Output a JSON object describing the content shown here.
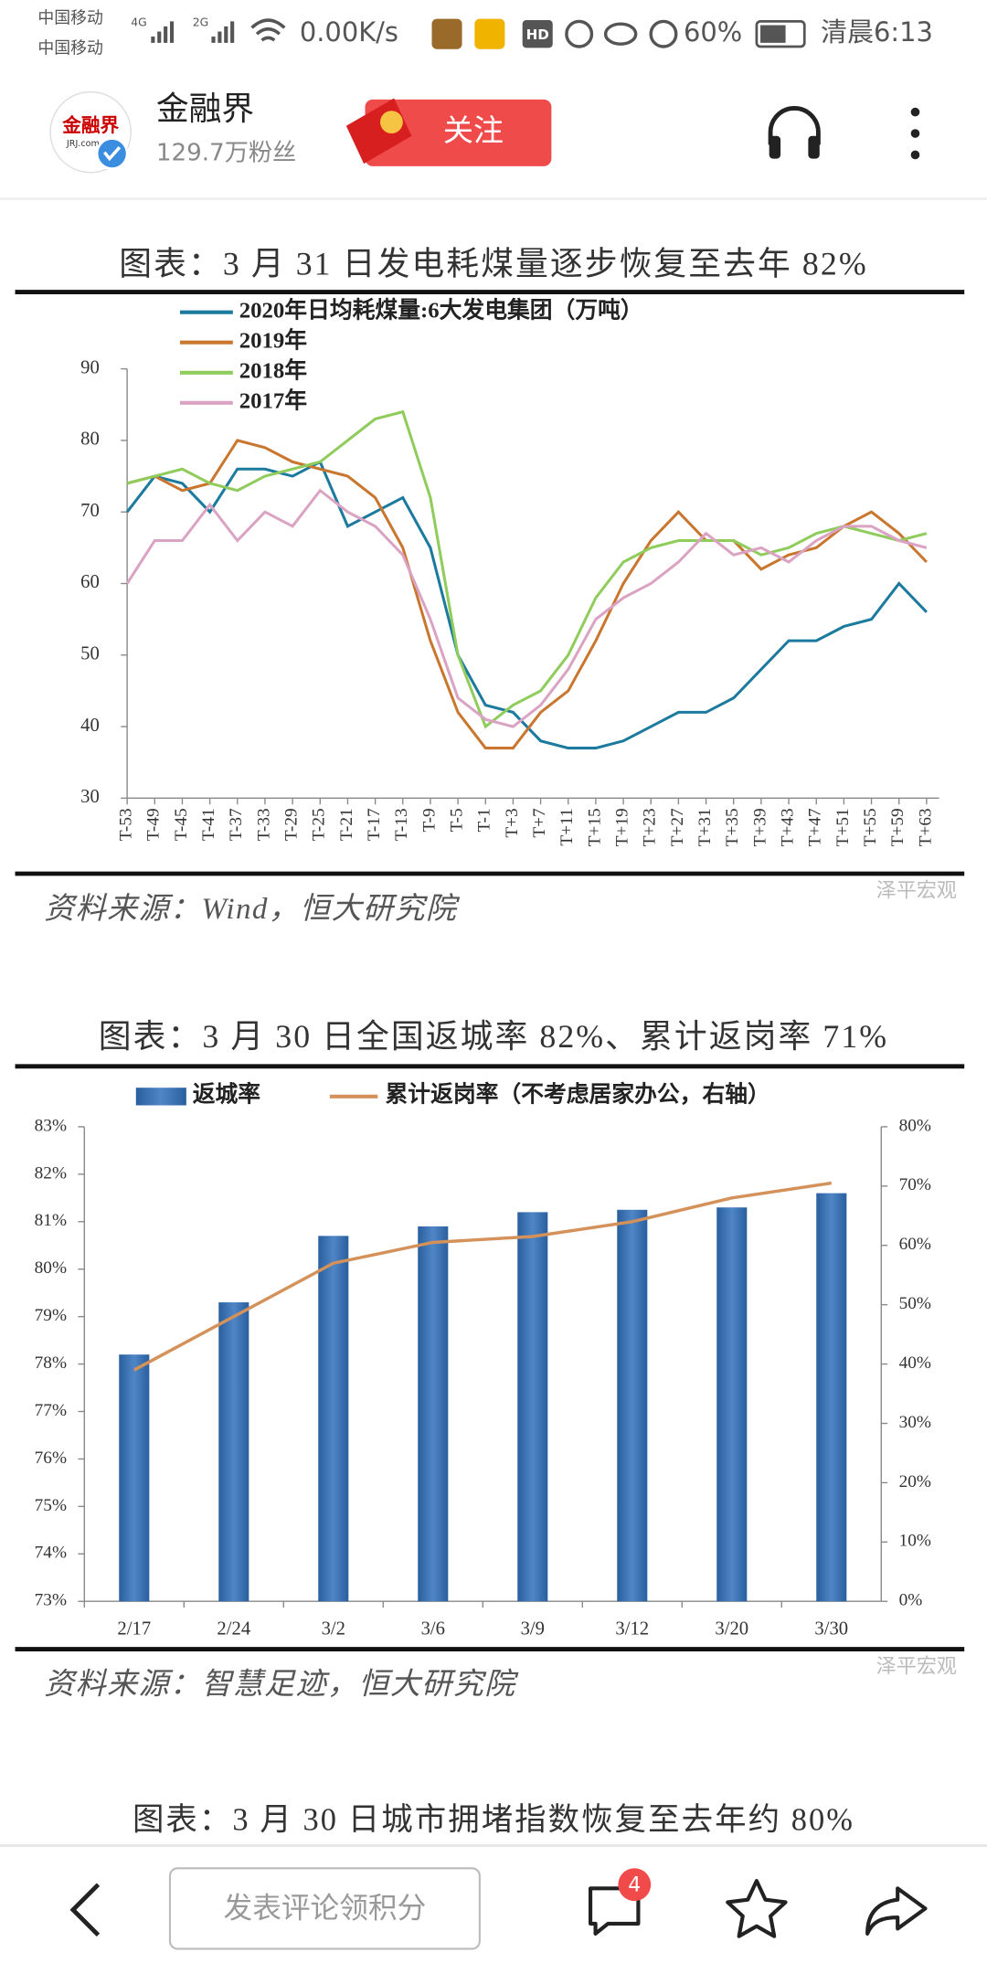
{
  "status_bar": {
    "carrier_1": "中国移动",
    "carrier_2": "中国移动",
    "net_1": "4G",
    "net_2": "2G",
    "speed": "0.00K/s",
    "hd": "HD",
    "battery": "60%",
    "time": "清晨6:13"
  },
  "header": {
    "logo": "金融界",
    "logo_sub": "JRJ.com",
    "name": "金融界",
    "followers": "129.7万粉丝",
    "follow_button": "关注"
  },
  "chart_data": [
    {
      "type": "line",
      "title": "图表：3 月 31 日发电耗煤量逐步恢复至去年 82%",
      "categories": [
        "T-53",
        "T-49",
        "T-45",
        "T-41",
        "T-37",
        "T-33",
        "T-29",
        "T-25",
        "T-21",
        "T-17",
        "T-13",
        "T-9",
        "T-5",
        "T-1",
        "T+3",
        "T+7",
        "T+11",
        "T+15",
        "T+19",
        "T+23",
        "T+27",
        "T+31",
        "T+35",
        "T+39",
        "T+43",
        "T+47",
        "T+51",
        "T+55",
        "T+59",
        "T+63"
      ],
      "series": [
        {
          "name": "2020年日均耗煤量:6大发电集团（万吨）",
          "color": "#1b7a9e",
          "values": [
            70,
            75,
            74,
            70,
            76,
            76,
            75,
            77,
            68,
            70,
            72,
            65,
            50,
            43,
            42,
            38,
            37,
            37,
            38,
            40,
            42,
            42,
            44,
            48,
            52,
            52,
            54,
            55,
            60,
            56
          ]
        },
        {
          "name": "2019年",
          "color": "#c9762f",
          "values": [
            74,
            75,
            73,
            74,
            80,
            79,
            77,
            76,
            75,
            72,
            65,
            52,
            42,
            37,
            37,
            42,
            45,
            52,
            60,
            66,
            70,
            66,
            66,
            62,
            64,
            65,
            68,
            70,
            67,
            63
          ]
        },
        {
          "name": "2018年",
          "color": "#8fcc5c",
          "values": [
            74,
            75,
            76,
            74,
            73,
            75,
            76,
            77,
            80,
            83,
            84,
            72,
            50,
            40,
            43,
            45,
            50,
            58,
            63,
            65,
            66,
            66,
            66,
            64,
            65,
            67,
            68,
            67,
            66,
            67
          ]
        },
        {
          "name": "2017年",
          "color": "#dba3c3",
          "values": [
            60,
            66,
            66,
            71,
            66,
            70,
            68,
            73,
            70,
            68,
            64,
            55,
            44,
            41,
            40,
            43,
            48,
            55,
            58,
            60,
            63,
            67,
            64,
            65,
            63,
            66,
            68,
            68,
            66,
            65
          ]
        }
      ],
      "ylim": [
        30,
        90
      ],
      "yticks": [
        30,
        40,
        50,
        60,
        70,
        80,
        90
      ],
      "legend": "top-left",
      "source": "资料来源：Wind，恒大研究院",
      "watermark": "泽平宏观"
    },
    {
      "type": "bar",
      "title": "图表：3 月 30 日全国返城率 82%、累计返岗率 71%",
      "categories": [
        "2/17",
        "2/24",
        "3/2",
        "3/6",
        "3/9",
        "3/12",
        "3/20",
        "3/30"
      ],
      "series": [
        {
          "name": "返城率",
          "type": "bar",
          "color": "#4f86c6",
          "values": [
            78.2,
            79.3,
            80.7,
            80.9,
            81.2,
            81.25,
            81.3,
            81.6
          ]
        },
        {
          "name": "累计返岗率（不考虑居家办公，右轴）",
          "type": "line",
          "axis": "y2",
          "color": "#d4915a",
          "values": [
            39,
            48,
            57,
            60.5,
            61.5,
            64,
            68,
            70.5
          ]
        }
      ],
      "ylim": [
        73,
        83
      ],
      "yticks": [
        {
          "value": 73,
          "label": "73%"
        },
        {
          "value": 74,
          "label": "74%"
        },
        {
          "value": 75,
          "label": "75%"
        },
        {
          "value": 76,
          "label": "76%"
        },
        {
          "value": 77,
          "label": "77%"
        },
        {
          "value": 78,
          "label": "78%"
        },
        {
          "value": 79,
          "label": "79%"
        },
        {
          "value": 80,
          "label": "80%"
        },
        {
          "value": 81,
          "label": "81%"
        },
        {
          "value": 82,
          "label": "82%"
        },
        {
          "value": 83,
          "label": "83%"
        }
      ],
      "y2lim": [
        0,
        80
      ],
      "y2ticks": [
        {
          "value": 0,
          "label": "0%"
        },
        {
          "value": 10,
          "label": "10%"
        },
        {
          "value": 20,
          "label": "20%"
        },
        {
          "value": 30,
          "label": "30%"
        },
        {
          "value": 40,
          "label": "40%"
        },
        {
          "value": 50,
          "label": "50%"
        },
        {
          "value": 60,
          "label": "60%"
        },
        {
          "value": 70,
          "label": "70%"
        },
        {
          "value": 80,
          "label": "80%"
        }
      ],
      "legend": "top",
      "source": "资料来源：智慧足迹，恒大研究院",
      "watermark": "泽平宏观"
    }
  ],
  "next_title": "图表：3 月 30 日城市拥堵指数恢复至去年约 80%",
  "bottom_bar": {
    "comment_placeholder": "发表评论领积分",
    "badge": "4"
  }
}
